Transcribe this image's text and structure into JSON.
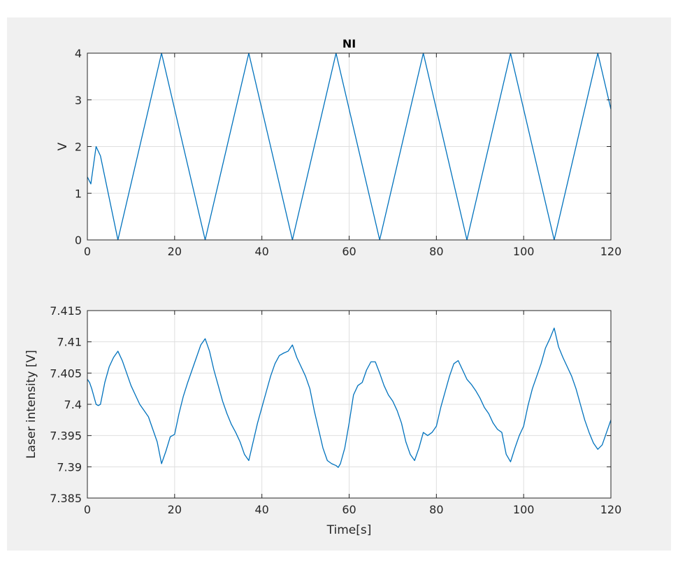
{
  "figure": {
    "background": "#f0f0f0",
    "line_color": "#0072bd"
  },
  "chart_data": [
    {
      "type": "line",
      "title": "NI",
      "xlabel": "",
      "ylabel": "V",
      "xlim": [
        0,
        120
      ],
      "ylim": [
        0,
        4
      ],
      "grid": true,
      "xticks": [
        0,
        20,
        40,
        60,
        80,
        100,
        120
      ],
      "yticks": [
        0,
        1,
        2,
        3,
        4
      ],
      "xtick_labels": [
        "0",
        "20",
        "40",
        "60",
        "80",
        "100",
        "120"
      ],
      "ytick_labels": [
        "0",
        "1",
        "2",
        "3",
        "4"
      ],
      "series": [
        {
          "x": [
            0,
            0.8,
            2,
            3,
            7,
            17,
            27,
            37,
            47,
            57,
            67,
            77,
            87,
            97,
            107,
            117,
            120
          ],
          "y": [
            1.35,
            1.2,
            2.0,
            1.8,
            0,
            4,
            0,
            4,
            0,
            4,
            0,
            4,
            0,
            4,
            0,
            4,
            2.8
          ]
        }
      ]
    },
    {
      "type": "line",
      "title": "",
      "xlabel": "Time[s]",
      "ylabel": "Laser intensity [V]",
      "xlim": [
        0,
        120
      ],
      "ylim": [
        7.385,
        7.415
      ],
      "grid": true,
      "xticks": [
        0,
        20,
        40,
        60,
        80,
        100,
        120
      ],
      "yticks": [
        7.385,
        7.39,
        7.395,
        7.4,
        7.405,
        7.41,
        7.415
      ],
      "xtick_labels": [
        "0",
        "20",
        "40",
        "60",
        "80",
        "100",
        "120"
      ],
      "ytick_labels": [
        "7.385",
        "7.39",
        "7.395",
        "7.4",
        "7.405",
        "7.41",
        "7.415"
      ],
      "series": [
        {
          "x": [
            0,
            0.5,
            1,
            2,
            2.5,
            3,
            4,
            5,
            6,
            7,
            8,
            9,
            10,
            11,
            12,
            13,
            14,
            15,
            16,
            17,
            18,
            19,
            20,
            21,
            22,
            23,
            24,
            25,
            26,
            27,
            28,
            29,
            30,
            31,
            32,
            33,
            34,
            35,
            36,
            37,
            38,
            39,
            40,
            41,
            42,
            43,
            44,
            45,
            46,
            47,
            48,
            49,
            50,
            51,
            52,
            53,
            54,
            55,
            56,
            57,
            57.5,
            58,
            59,
            60,
            61,
            62,
            63,
            64,
            65,
            66,
            67,
            68,
            69,
            70,
            71,
            72,
            73,
            74,
            75,
            76,
            77,
            78,
            79,
            80,
            81,
            82,
            83,
            84,
            85,
            86,
            87,
            88,
            89,
            90,
            91,
            92,
            93,
            94,
            95,
            96,
            97,
            98,
            99,
            100,
            101,
            102,
            103,
            104,
            105,
            106,
            107,
            108,
            109,
            110,
            111,
            112,
            113,
            114,
            115,
            116,
            117,
            118,
            119,
            120
          ],
          "y": [
            7.404,
            7.4035,
            7.4025,
            7.4,
            7.3998,
            7.4,
            7.4035,
            7.406,
            7.4075,
            7.4085,
            7.407,
            7.405,
            7.403,
            7.4015,
            7.4,
            7.399,
            7.398,
            7.396,
            7.394,
            7.3905,
            7.3925,
            7.3948,
            7.3952,
            7.3985,
            7.4013,
            7.4035,
            7.4055,
            7.4075,
            7.4095,
            7.4105,
            7.4085,
            7.4055,
            7.403,
            7.4005,
            7.3985,
            7.3968,
            7.3955,
            7.394,
            7.392,
            7.391,
            7.394,
            7.397,
            7.3995,
            7.402,
            7.4045,
            7.4065,
            7.4078,
            7.4082,
            7.4085,
            7.4095,
            7.4075,
            7.406,
            7.4045,
            7.4025,
            7.399,
            7.396,
            7.393,
            7.391,
            7.3905,
            7.3902,
            7.3899,
            7.3905,
            7.393,
            7.397,
            7.4015,
            7.403,
            7.4035,
            7.4055,
            7.4068,
            7.4068,
            7.405,
            7.403,
            7.4015,
            7.4005,
            7.399,
            7.397,
            7.394,
            7.392,
            7.391,
            7.393,
            7.3955,
            7.395,
            7.3955,
            7.3965,
            7.3995,
            7.402,
            7.4045,
            7.4065,
            7.407,
            7.4055,
            7.404,
            7.4032,
            7.4022,
            7.401,
            7.3995,
            7.3985,
            7.397,
            7.396,
            7.3955,
            7.392,
            7.3908,
            7.393,
            7.395,
            7.3965,
            7.3998,
            7.4025,
            7.4045,
            7.4065,
            7.409,
            7.4105,
            7.4122,
            7.4092,
            7.4075,
            7.406,
            7.4045,
            7.4025,
            7.4,
            7.3975,
            7.3955,
            7.3938,
            7.3928,
            7.3935,
            7.3955,
            7.3975
          ]
        }
      ]
    }
  ]
}
